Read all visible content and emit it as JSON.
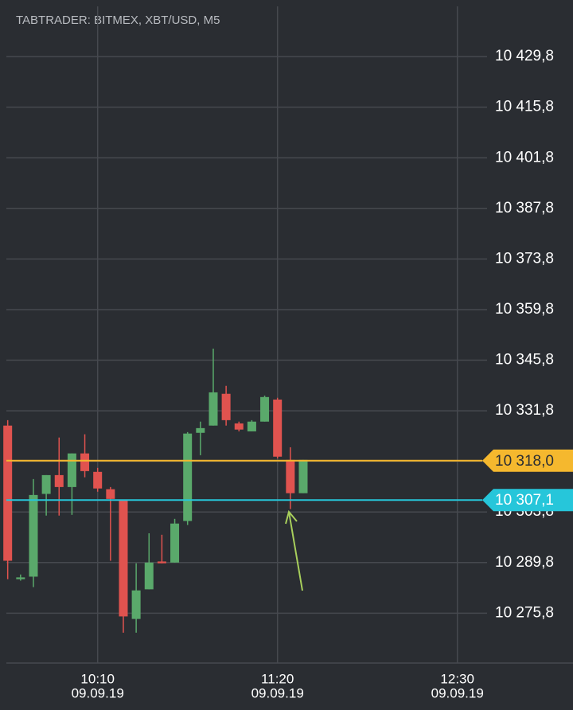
{
  "chart_data": {
    "type": "candlestick",
    "title": "TABTRADER: BITMEX, XBT/USD, M5",
    "x": [
      "2019-09-09 09:35",
      "2019-09-09 09:40",
      "2019-09-09 09:45",
      "2019-09-09 09:50",
      "2019-09-09 09:55",
      "2019-09-09 10:00",
      "2019-09-09 10:05",
      "2019-09-09 10:10",
      "2019-09-09 10:15",
      "2019-09-09 10:20",
      "2019-09-09 10:25",
      "2019-09-09 10:30",
      "2019-09-09 10:35",
      "2019-09-09 10:40",
      "2019-09-09 10:45",
      "2019-09-09 10:50",
      "2019-09-09 10:55",
      "2019-09-09 11:00",
      "2019-09-09 11:05",
      "2019-09-09 11:10",
      "2019-09-09 11:15",
      "2019-09-09 11:20",
      "2019-09-09 11:25",
      "2019-09-09 11:30"
    ],
    "open": [
      10327.7,
      10285.2,
      10285.9,
      10308.8,
      10314.0,
      10310.7,
      10320.0,
      10314.9,
      10310.1,
      10307.2,
      10274.2,
      10282.4,
      10290.1,
      10289.8,
      10301.3,
      10325.7,
      10327.7,
      10336.5,
      10328.3,
      10326.1,
      10328.8,
      10334.9,
      10318.2,
      10309.0
    ],
    "high": [
      10329.2,
      10286.5,
      10312.9,
      10314.0,
      10324.4,
      10320.0,
      10325.3,
      10316.0,
      10310.7,
      10307.2,
      10289.6,
      10297.9,
      10297.5,
      10301.9,
      10325.9,
      10328.8,
      10349.0,
      10338.7,
      10328.8,
      10329.2,
      10336.0,
      10335.4,
      10321.7,
      10318.2
    ],
    "low": [
      10285.2,
      10284.8,
      10283.0,
      10302.8,
      10302.8,
      10303.0,
      10313.4,
      10309.4,
      10290.3,
      10270.4,
      10270.4,
      10282.4,
      10289.6,
      10289.8,
      10300.2,
      10319.5,
      10327.7,
      10327.7,
      10326.1,
      10326.1,
      10328.8,
      10318.6,
      10304.6,
      10309.0
    ],
    "close": [
      10290.3,
      10285.7,
      10308.5,
      10314.0,
      10310.7,
      10320.0,
      10315.1,
      10310.3,
      10307.4,
      10274.9,
      10282.1,
      10289.8,
      10289.6,
      10300.6,
      10325.5,
      10327.0,
      10336.9,
      10329.2,
      10326.6,
      10328.8,
      10335.6,
      10319.1,
      10309.0,
      10318.2
    ],
    "up_color": "#5aa96b",
    "down_color": "#e0534f",
    "ylim": [
      10262.0,
      10443.7
    ],
    "yticks": [
      {
        "value": 10275.8,
        "label": "10 275,8"
      },
      {
        "value": 10289.8,
        "label": "10 289,8"
      },
      {
        "value": 10303.8,
        "label": "10 303,8"
      },
      {
        "value": 10317.8,
        "label": "10 317,8"
      },
      {
        "value": 10331.8,
        "label": "10 331,8"
      },
      {
        "value": 10345.8,
        "label": "10 345,8"
      },
      {
        "value": 10359.8,
        "label": "10 359,8"
      },
      {
        "value": 10373.8,
        "label": "10 373,8"
      },
      {
        "value": 10387.8,
        "label": "10 387,8"
      },
      {
        "value": 10401.8,
        "label": "10 401,8"
      },
      {
        "value": 10415.8,
        "label": "10 415,8"
      },
      {
        "value": 10429.8,
        "label": "10 429,8"
      }
    ],
    "xlim": [
      "2019-09-09 09:32",
      "2019-09-09 13:15"
    ],
    "xticks": [
      {
        "value": "2019-09-09 10:10",
        "label": [
          "10:10",
          "09.09.19"
        ]
      },
      {
        "value": "2019-09-09 11:20",
        "label": [
          "11:20",
          "09.09.19"
        ]
      },
      {
        "value": "2019-09-09 12:30",
        "label": [
          "12:30",
          "09.09.19"
        ]
      }
    ],
    "grid": true,
    "price_lines": [
      {
        "value": 10318.0,
        "label": "10 318,0",
        "color": "#f5b82e",
        "text_color": "#2b2e33"
      },
      {
        "value": 10307.1,
        "label": "10 307,1",
        "color": "#26c6da",
        "text_color": "#ffffff"
      }
    ]
  }
}
